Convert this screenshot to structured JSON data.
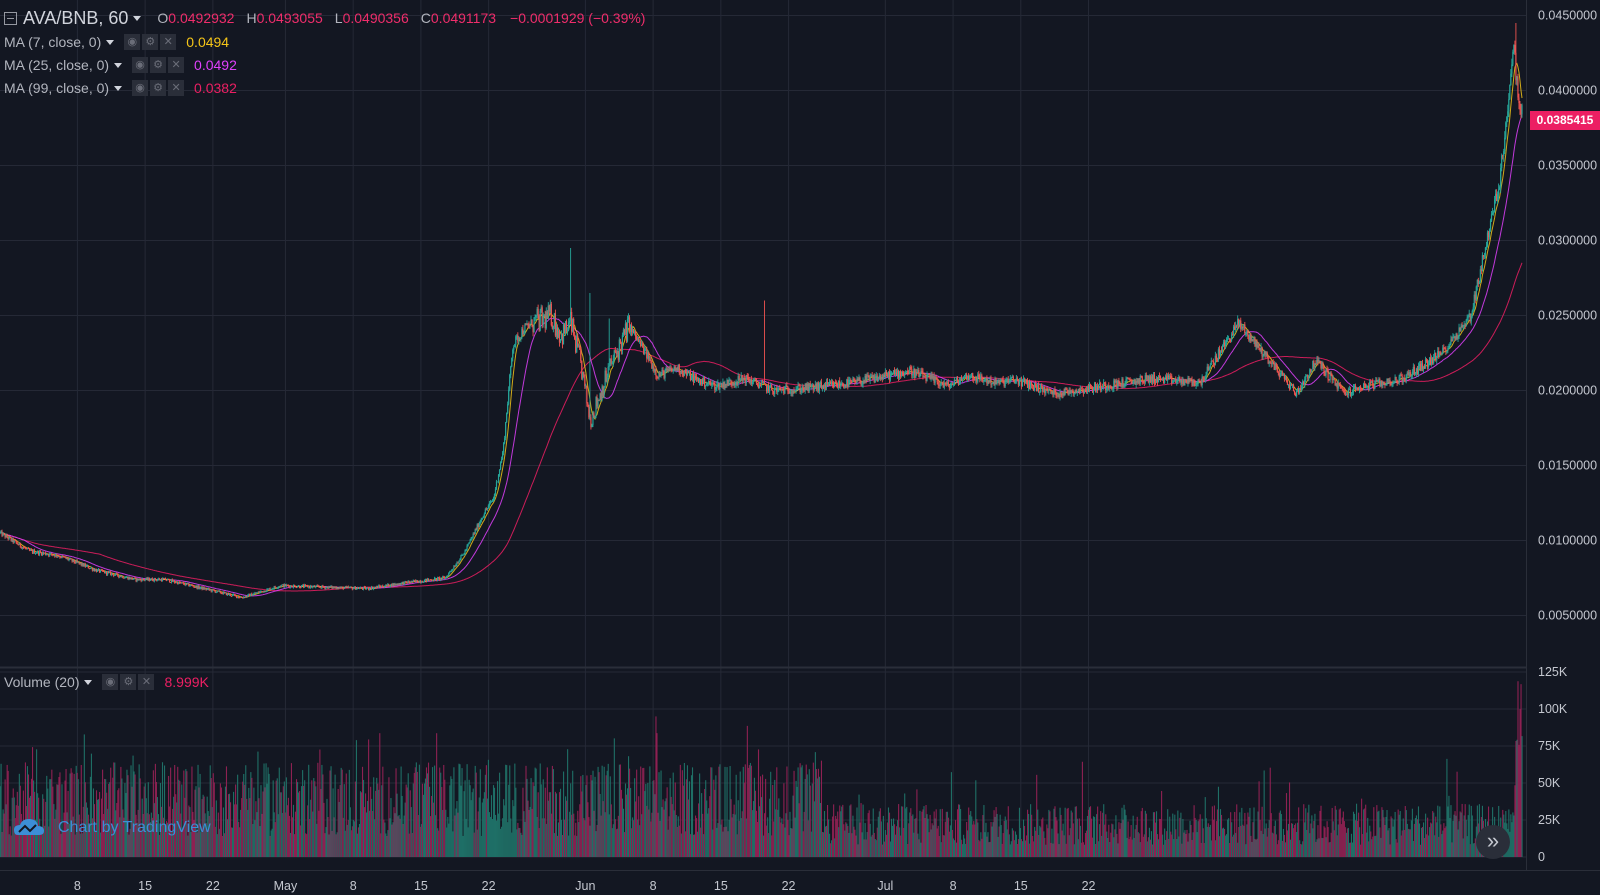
{
  "header": {
    "symbol": "AVA/BNB, 60",
    "open_label": "O",
    "open": "0.0492932",
    "high_label": "H",
    "high": "0.0493055",
    "low_label": "L",
    "low": "0.0490356",
    "close_label": "C",
    "close": "0.0491173",
    "change": "−0.0001929 (−0.39%)"
  },
  "indicators": [
    {
      "label": "MA (7, close, 0)",
      "value": "0.0494",
      "color": "#f5c518"
    },
    {
      "label": "MA (25, close, 0)",
      "value": "0.0492",
      "color": "#e040fb"
    },
    {
      "label": "MA (99, close, 0)",
      "value": "0.0382",
      "color": "#ec1f63"
    }
  ],
  "volume_indicator": {
    "label": "Volume (20)",
    "value": "8.999K",
    "color": "#ec1f63"
  },
  "last_price": "0.0385415",
  "branding": {
    "text": "Chart by TradingView"
  },
  "colors": {
    "background": "#131722",
    "up": "#26a69a",
    "down": "#ef5350",
    "vol_up": "#1f6f66",
    "vol_down": "#8e2152",
    "grid": "#252936"
  },
  "chart_data": {
    "type": "candlestick",
    "interval": "60",
    "price_axis": {
      "range": [
        0.0015,
        0.0455
      ],
      "ticks": [
        "0.0450000",
        "0.0400000",
        "0.0350000",
        "0.0300000",
        "0.0250000",
        "0.0200000",
        "0.0150000",
        "0.0100000",
        "0.0050000"
      ]
    },
    "volume_axis": {
      "range": [
        0,
        125000
      ],
      "ticks": [
        "125K",
        "100K",
        "75K",
        "50K",
        "25K",
        "0"
      ]
    },
    "x_ticks": [
      "8",
      "15",
      "22",
      "May",
      "8",
      "15",
      "22",
      "Jun",
      "8",
      "15",
      "22",
      "Jul",
      "8",
      "15",
      "22"
    ],
    "price_path_days": [
      0,
      3,
      6,
      10,
      14,
      17,
      21,
      25,
      29,
      33,
      38,
      42,
      46,
      48,
      50,
      51,
      52,
      53,
      54,
      55,
      56,
      57,
      58,
      59,
      60,
      61,
      63,
      65,
      67,
      68,
      70,
      72,
      74,
      77,
      80,
      84,
      88,
      94,
      98,
      100,
      103,
      105,
      109,
      114,
      119,
      124,
      128,
      134,
      136,
      138,
      139,
      141,
      143,
      145,
      149,
      152,
      154,
      155,
      156,
      156.4,
      157.1
    ],
    "price_path_values": [
      0.0105,
      0.0093,
      0.009,
      0.008,
      0.0074,
      0.0074,
      0.0068,
      0.0062,
      0.007,
      0.0069,
      0.0068,
      0.0072,
      0.0075,
      0.0092,
      0.0118,
      0.0128,
      0.016,
      0.023,
      0.024,
      0.0245,
      0.0247,
      0.025,
      0.0236,
      0.0245,
      0.0218,
      0.018,
      0.0215,
      0.0243,
      0.0222,
      0.021,
      0.0215,
      0.0207,
      0.0203,
      0.0208,
      0.02,
      0.0202,
      0.0205,
      0.0213,
      0.0203,
      0.021,
      0.0205,
      0.0207,
      0.0198,
      0.0203,
      0.0208,
      0.0205,
      0.0245,
      0.0198,
      0.022,
      0.0205,
      0.0198,
      0.0203,
      0.0205,
      0.0208,
      0.0225,
      0.025,
      0.031,
      0.034,
      0.04,
      0.043,
      0.0385
    ],
    "notable_highs": [
      {
        "day": 59,
        "value": 0.0295
      },
      {
        "day": 61,
        "value": 0.0265
      },
      {
        "day": 79,
        "value": 0.026
      },
      {
        "day": 63,
        "value": 0.0248
      },
      {
        "day": 156.7,
        "value": 0.0445
      }
    ],
    "ma_series": [
      {
        "name": "MA (7, close, 0)",
        "color": "#f5c518"
      },
      {
        "name": "MA (25, close, 0)",
        "color": "#e040fb"
      },
      {
        "name": "MA (99, close, 0)",
        "color": "#ec1f63"
      }
    ],
    "grid": true,
    "legend_position": "top-left"
  }
}
